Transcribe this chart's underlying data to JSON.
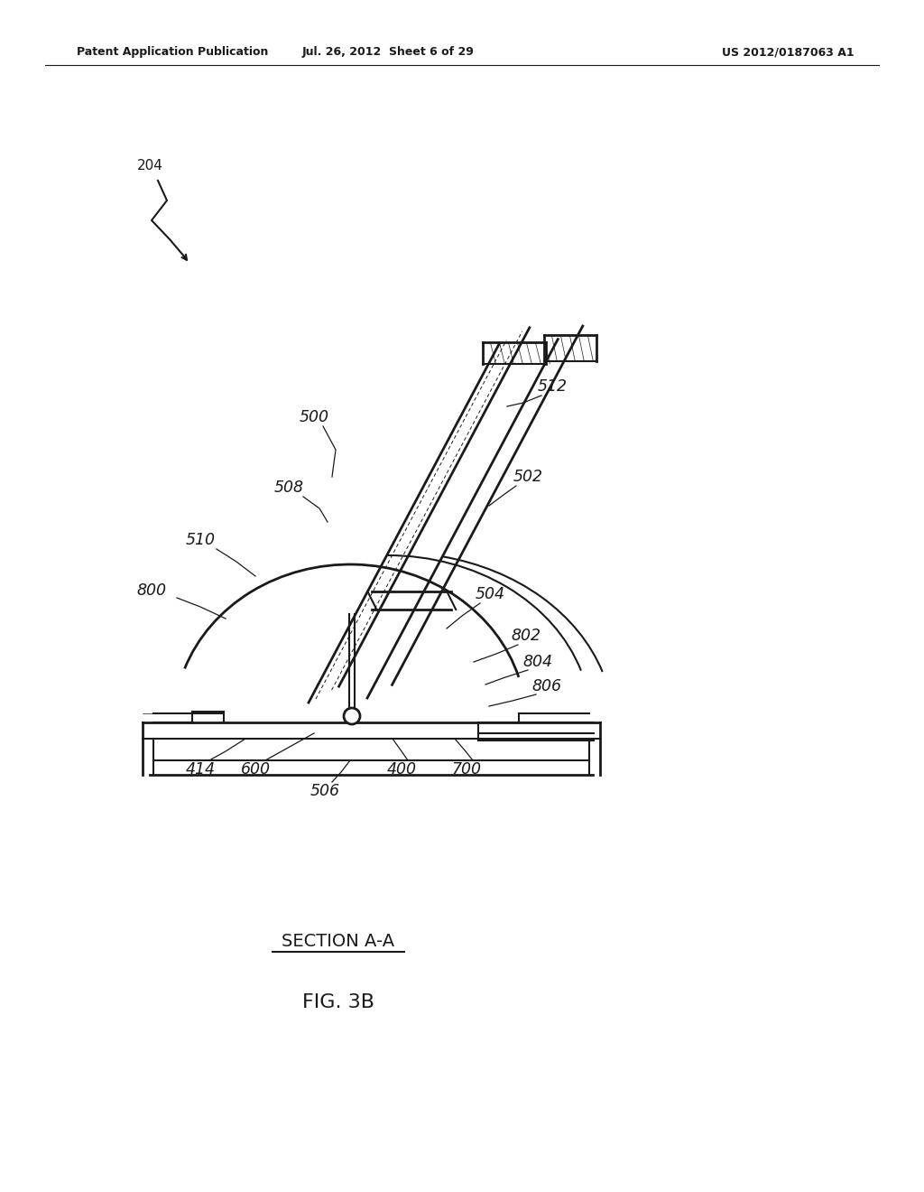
{
  "bg_color": "#ffffff",
  "header_left": "Patent Application Publication",
  "header_mid": "Jul. 26, 2012  Sheet 6 of 29",
  "header_right": "US 2012/0187063 A1",
  "section_label": "SECTION A-A",
  "fig_label": "FIG. 3B",
  "line_color": "#1a1a1a"
}
